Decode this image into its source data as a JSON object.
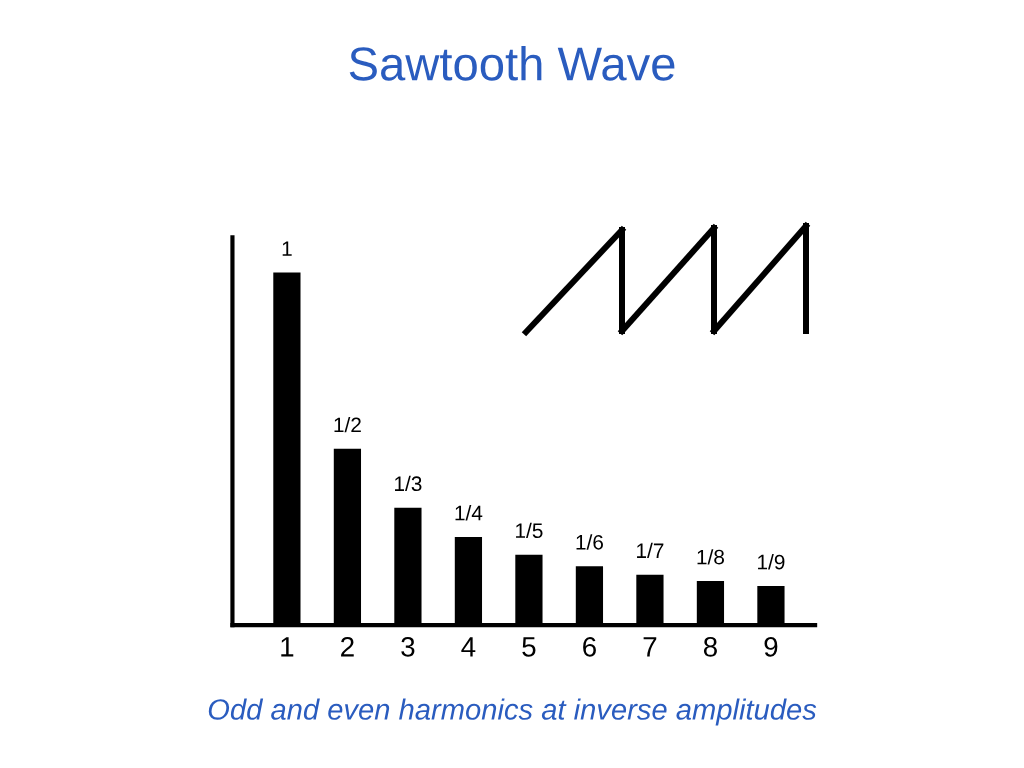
{
  "chart_data": {
    "type": "bar",
    "title": "Sawtooth Wave",
    "categories": [
      "1",
      "2",
      "3",
      "4",
      "5",
      "6",
      "7",
      "8",
      "9"
    ],
    "values": [
      1,
      0.5,
      0.333,
      0.25,
      0.2,
      0.167,
      0.143,
      0.125,
      0.111
    ],
    "value_labels": [
      "1",
      "1/2",
      "1/3",
      "1/4",
      "1/5",
      "1/6",
      "1/7",
      "1/8",
      "1/9"
    ],
    "color": "#000000",
    "ylim": [
      0,
      1.1
    ],
    "tick_labels": "x",
    "annotations": [
      "Odd and even harmonics at inverse amplitudes"
    ]
  }
}
